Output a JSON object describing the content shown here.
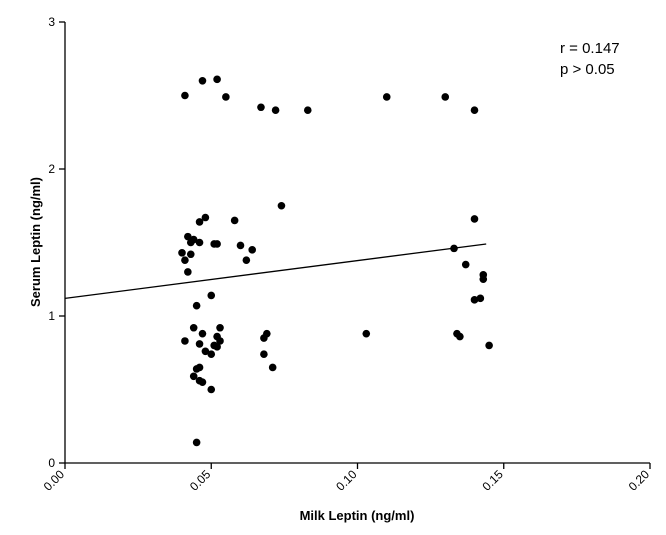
{
  "chart_data": {
    "type": "scatter",
    "xlabel": "Milk Leptin (ng/ml)",
    "ylabel": "Serum Leptin (ng/ml)",
    "xlim": [
      0.0,
      0.2
    ],
    "ylim": [
      0,
      3
    ],
    "x_ticks": [
      "0.00",
      "0.05",
      "0.10",
      "0.15",
      "0.20"
    ],
    "y_ticks": [
      "0",
      "1",
      "2",
      "3"
    ],
    "grid": false,
    "annotations": [
      "r = 0.147",
      "p > 0.05"
    ],
    "regression_line": {
      "x": [
        0.0,
        0.144
      ],
      "y": [
        1.12,
        1.49
      ]
    },
    "points": [
      {
        "x": 0.041,
        "y": 2.5
      },
      {
        "x": 0.047,
        "y": 2.6
      },
      {
        "x": 0.052,
        "y": 2.61
      },
      {
        "x": 0.055,
        "y": 2.49
      },
      {
        "x": 0.067,
        "y": 2.42
      },
      {
        "x": 0.072,
        "y": 2.4
      },
      {
        "x": 0.083,
        "y": 2.4
      },
      {
        "x": 0.11,
        "y": 2.49
      },
      {
        "x": 0.13,
        "y": 2.49
      },
      {
        "x": 0.14,
        "y": 2.4
      },
      {
        "x": 0.074,
        "y": 1.75
      },
      {
        "x": 0.048,
        "y": 1.67
      },
      {
        "x": 0.046,
        "y": 1.64
      },
      {
        "x": 0.058,
        "y": 1.65
      },
      {
        "x": 0.14,
        "y": 1.66
      },
      {
        "x": 0.042,
        "y": 1.54
      },
      {
        "x": 0.043,
        "y": 1.5
      },
      {
        "x": 0.044,
        "y": 1.52
      },
      {
        "x": 0.046,
        "y": 1.5
      },
      {
        "x": 0.051,
        "y": 1.49
      },
      {
        "x": 0.052,
        "y": 1.49
      },
      {
        "x": 0.06,
        "y": 1.48
      },
      {
        "x": 0.064,
        "y": 1.45
      },
      {
        "x": 0.04,
        "y": 1.43
      },
      {
        "x": 0.041,
        "y": 1.38
      },
      {
        "x": 0.043,
        "y": 1.42
      },
      {
        "x": 0.062,
        "y": 1.38
      },
      {
        "x": 0.042,
        "y": 1.3
      },
      {
        "x": 0.133,
        "y": 1.46
      },
      {
        "x": 0.137,
        "y": 1.35
      },
      {
        "x": 0.143,
        "y": 1.28
      },
      {
        "x": 0.143,
        "y": 1.25
      },
      {
        "x": 0.045,
        "y": 1.07
      },
      {
        "x": 0.05,
        "y": 1.14
      },
      {
        "x": 0.14,
        "y": 1.11
      },
      {
        "x": 0.142,
        "y": 1.12
      },
      {
        "x": 0.041,
        "y": 0.83
      },
      {
        "x": 0.044,
        "y": 0.92
      },
      {
        "x": 0.046,
        "y": 0.81
      },
      {
        "x": 0.047,
        "y": 0.88
      },
      {
        "x": 0.048,
        "y": 0.76
      },
      {
        "x": 0.05,
        "y": 0.74
      },
      {
        "x": 0.051,
        "y": 0.8
      },
      {
        "x": 0.052,
        "y": 0.79
      },
      {
        "x": 0.052,
        "y": 0.86
      },
      {
        "x": 0.053,
        "y": 0.92
      },
      {
        "x": 0.053,
        "y": 0.83
      },
      {
        "x": 0.068,
        "y": 0.85
      },
      {
        "x": 0.069,
        "y": 0.88
      },
      {
        "x": 0.068,
        "y": 0.74
      },
      {
        "x": 0.103,
        "y": 0.88
      },
      {
        "x": 0.134,
        "y": 0.88
      },
      {
        "x": 0.135,
        "y": 0.86
      },
      {
        "x": 0.145,
        "y": 0.8
      },
      {
        "x": 0.044,
        "y": 0.59
      },
      {
        "x": 0.045,
        "y": 0.64
      },
      {
        "x": 0.046,
        "y": 0.65
      },
      {
        "x": 0.046,
        "y": 0.56
      },
      {
        "x": 0.047,
        "y": 0.55
      },
      {
        "x": 0.071,
        "y": 0.65
      },
      {
        "x": 0.05,
        "y": 0.5
      },
      {
        "x": 0.045,
        "y": 0.14
      }
    ]
  }
}
